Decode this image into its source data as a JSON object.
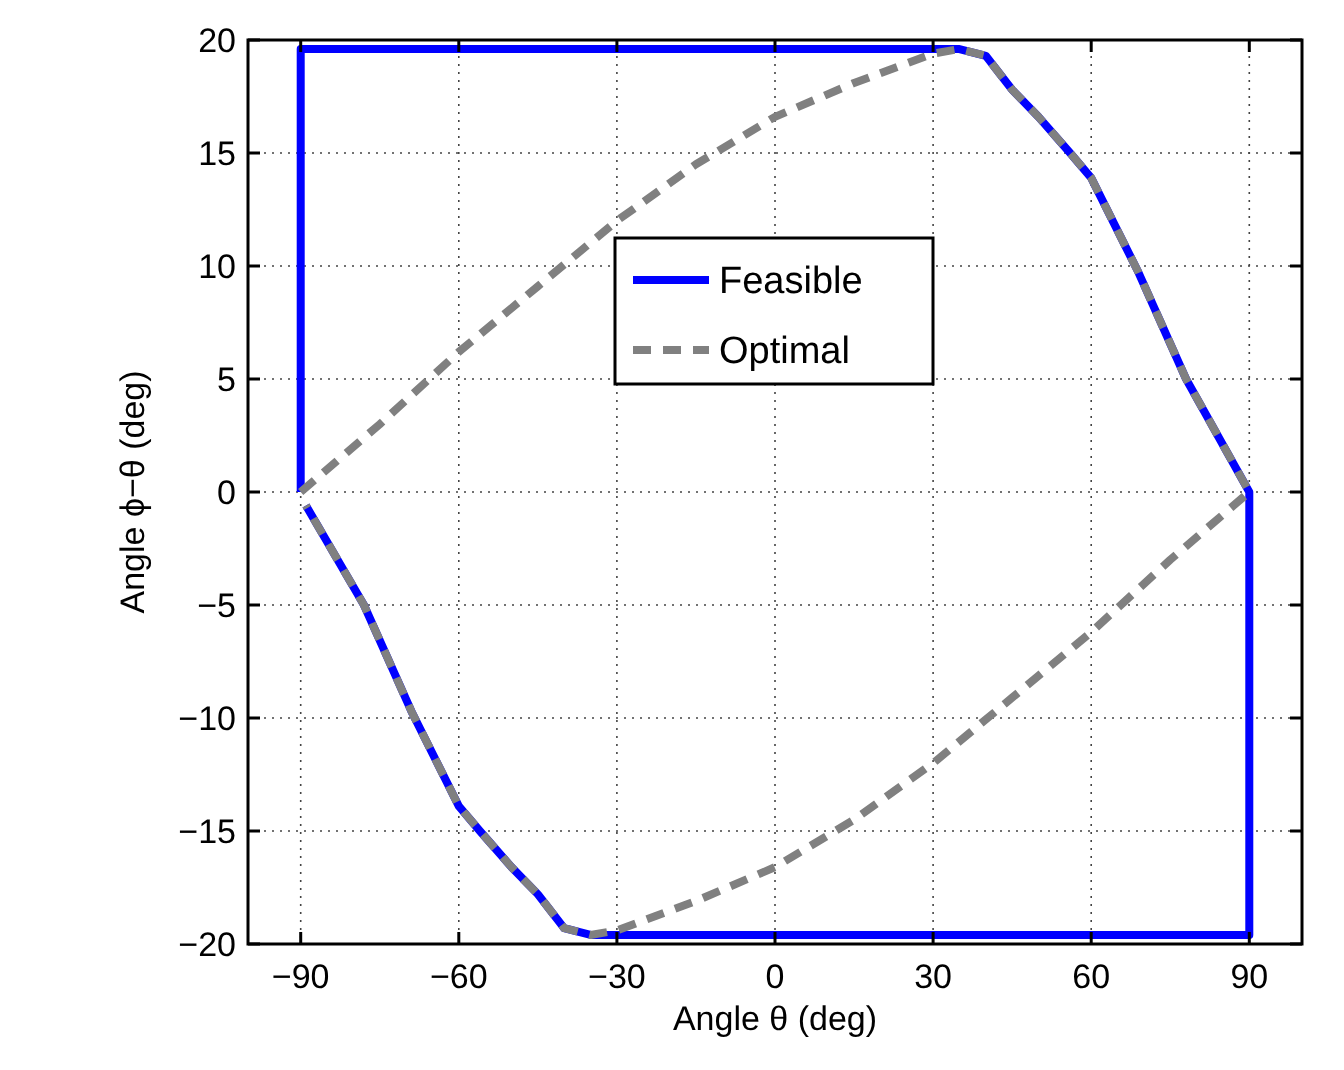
{
  "chart_data": {
    "type": "line",
    "xlabel": "Angle θ (deg)",
    "ylabel": "Angle ϕ−θ (deg)",
    "xlim": [
      -100,
      100
    ],
    "ylim": [
      -20,
      20
    ],
    "xticks": [
      -90,
      -60,
      -30,
      0,
      30,
      60,
      90
    ],
    "yticks": [
      -20,
      -15,
      -10,
      -5,
      0,
      5,
      10,
      15,
      20
    ],
    "grid": true,
    "legend": "top",
    "series": [
      {
        "name": "Feasible",
        "color": "#0000ff",
        "line_style": "solid",
        "x": [
          -90,
          -90,
          35,
          40,
          45,
          50,
          56,
          60,
          69,
          78,
          90,
          90,
          -35,
          -40,
          -45,
          -50,
          -56,
          -60,
          -69,
          -78,
          -89
        ],
        "values": [
          0,
          19.6,
          19.6,
          19.3,
          17.8,
          16.6,
          15,
          13.9,
          9.7,
          5,
          0,
          -19.6,
          -19.6,
          -19.3,
          -17.8,
          -16.6,
          -15,
          -13.9,
          -9.7,
          -5,
          -0.6
        ]
      },
      {
        "name": "Optimal",
        "color": "#808080",
        "line_style": "dashed",
        "x": [
          -90,
          -75,
          -60,
          -45,
          -30,
          -15,
          0,
          15,
          30,
          35,
          40,
          45,
          50,
          56,
          60,
          69,
          78,
          90,
          75,
          60,
          45,
          30,
          15,
          0,
          -15,
          -30,
          -35,
          -40,
          -45,
          -50,
          -56,
          -60,
          -69,
          -78,
          -89
        ],
        "values": [
          0,
          3,
          6.2,
          9.1,
          12,
          14.5,
          16.6,
          18.1,
          19.4,
          19.6,
          19.3,
          17.8,
          16.6,
          15,
          13.9,
          9.7,
          5,
          0,
          -3,
          -6.2,
          -9.1,
          -12,
          -14.5,
          -16.6,
          -18.1,
          -19.4,
          -19.6,
          -19.3,
          -17.8,
          -16.6,
          -15,
          -13.9,
          -9.7,
          -5,
          -0.6
        ]
      }
    ]
  }
}
